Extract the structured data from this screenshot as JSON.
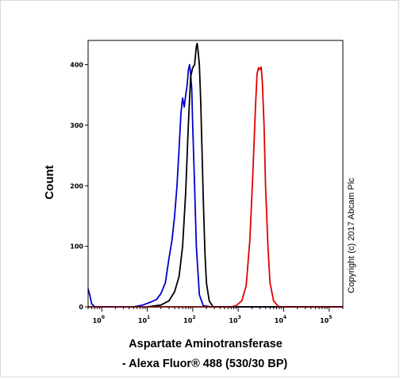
{
  "chart_data": {
    "type": "line",
    "title": "",
    "xlabel_line1": "Aspartate Aminotransferase",
    "xlabel_line2": "- Alexa Fluor® 488 (530/30 BP)",
    "ylabel": "Count",
    "x_scale": "log",
    "xlim": [
      0.5,
      200000
    ],
    "ylim": [
      0,
      440
    ],
    "y_ticks": [
      0,
      100,
      200,
      300,
      400
    ],
    "x_ticks": [
      {
        "value": 1,
        "base": "10",
        "exp": "0"
      },
      {
        "value": 10,
        "base": "10",
        "exp": "1"
      },
      {
        "value": 100,
        "base": "10",
        "exp": "2"
      },
      {
        "value": 1000,
        "base": "10",
        "exp": "3"
      },
      {
        "value": 10000,
        "base": "10",
        "exp": "4"
      },
      {
        "value": 100000,
        "base": "10",
        "exp": "5"
      }
    ],
    "series": [
      {
        "color": "#0000cc",
        "points": [
          [
            0.5,
            30
          ],
          [
            0.55,
            18
          ],
          [
            0.6,
            5
          ],
          [
            0.7,
            0
          ],
          [
            5,
            0
          ],
          [
            8,
            3
          ],
          [
            12,
            8
          ],
          [
            16,
            12
          ],
          [
            20,
            22
          ],
          [
            25,
            40
          ],
          [
            30,
            80
          ],
          [
            35,
            110
          ],
          [
            40,
            150
          ],
          [
            45,
            200
          ],
          [
            50,
            260
          ],
          [
            55,
            320
          ],
          [
            60,
            345
          ],
          [
            65,
            330
          ],
          [
            70,
            350
          ],
          [
            75,
            365
          ],
          [
            80,
            390
          ],
          [
            85,
            400
          ],
          [
            90,
            385
          ],
          [
            95,
            360
          ],
          [
            100,
            300
          ],
          [
            110,
            200
          ],
          [
            120,
            100
          ],
          [
            140,
            20
          ],
          [
            170,
            2
          ],
          [
            250,
            0
          ],
          [
            200000,
            0
          ]
        ]
      },
      {
        "color": "#000000",
        "points": [
          [
            10,
            0
          ],
          [
            20,
            3
          ],
          [
            30,
            10
          ],
          [
            40,
            25
          ],
          [
            50,
            50
          ],
          [
            60,
            100
          ],
          [
            70,
            190
          ],
          [
            80,
            300
          ],
          [
            90,
            380
          ],
          [
            100,
            395
          ],
          [
            110,
            400
          ],
          [
            120,
            430
          ],
          [
            125,
            435
          ],
          [
            130,
            425
          ],
          [
            140,
            400
          ],
          [
            150,
            340
          ],
          [
            160,
            260
          ],
          [
            170,
            180
          ],
          [
            185,
            90
          ],
          [
            200,
            40
          ],
          [
            230,
            10
          ],
          [
            280,
            0
          ],
          [
            200000,
            0
          ]
        ]
      },
      {
        "color": "#e00000",
        "points": [
          [
            0.5,
            0
          ],
          [
            700,
            0
          ],
          [
            900,
            2
          ],
          [
            1200,
            10
          ],
          [
            1500,
            35
          ],
          [
            1800,
            110
          ],
          [
            2100,
            220
          ],
          [
            2400,
            330
          ],
          [
            2600,
            385
          ],
          [
            2800,
            395
          ],
          [
            3000,
            392
          ],
          [
            3200,
            396
          ],
          [
            3400,
            370
          ],
          [
            3700,
            300
          ],
          [
            4000,
            200
          ],
          [
            4500,
            100
          ],
          [
            5000,
            40
          ],
          [
            6000,
            10
          ],
          [
            7500,
            1
          ],
          [
            9000,
            0
          ],
          [
            200000,
            0
          ]
        ]
      }
    ],
    "annotation": "Copyright (c) 2017 Abcam Plc"
  }
}
